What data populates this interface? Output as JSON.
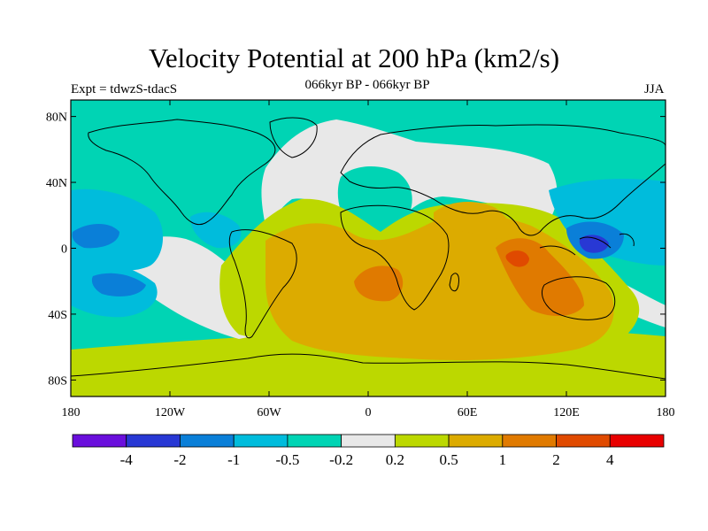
{
  "title": "Velocity Potential at 200 hPa (km2/s)",
  "subtitle": "066kyr BP - 066kyr BP",
  "experiment": "Expt = tdwzS-tdacS",
  "season": "JJA",
  "map": {
    "projection": "cylindrical-equidistant",
    "lon_range": [
      -180,
      180
    ],
    "lat_range": [
      -90,
      90
    ],
    "lat_ticks": [
      {
        "lat": 80,
        "label": "80N"
      },
      {
        "lat": 40,
        "label": "40N"
      },
      {
        "lat": 0,
        "label": "0"
      },
      {
        "lat": -40,
        "label": "40S"
      },
      {
        "lat": -80,
        "label": "80S"
      }
    ],
    "lon_ticks": [
      {
        "lon": -180,
        "label": "180"
      },
      {
        "lon": -120,
        "label": "120W"
      },
      {
        "lon": -60,
        "label": "60W"
      },
      {
        "lon": 0,
        "label": "0"
      },
      {
        "lon": 60,
        "label": "60E"
      },
      {
        "lon": 120,
        "label": "120E"
      },
      {
        "lon": 180,
        "label": "180"
      }
    ]
  },
  "colorbar": {
    "colors": [
      "#6a0fdc",
      "#2838d4",
      "#0a7fd8",
      "#00bcdc",
      "#00d4b4",
      "#e8e8e8",
      "#bcd800",
      "#dcab00",
      "#e07a00",
      "#e04a00",
      "#e80000"
    ],
    "labels": [
      "-4",
      "-2",
      "-1",
      "-0.5",
      "-0.2",
      "0.2",
      "0.5",
      "1",
      "2",
      "4"
    ]
  }
}
